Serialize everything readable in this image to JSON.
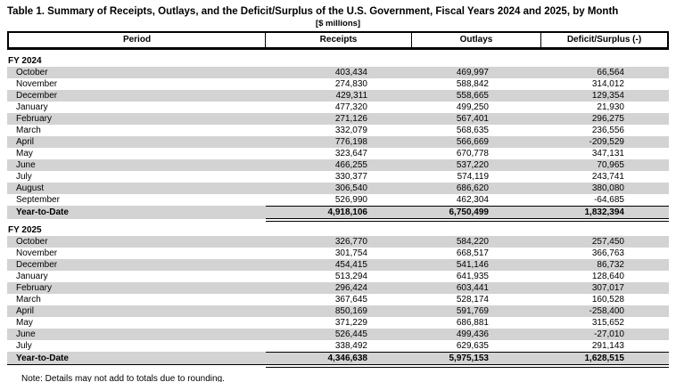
{
  "title": "Table 1. Summary of Receipts, Outlays, and the Deficit/Surplus of the U.S. Government, Fiscal Years 2024 and 2025, by Month",
  "units_caption": "[$ millions]",
  "columns": {
    "period": "Period",
    "receipts": "Receipts",
    "outlays": "Outlays",
    "deficit": "Deficit/Surplus (-)"
  },
  "colors": {
    "row_shade": "#d3d3d3",
    "border": "#000000"
  },
  "table": {
    "sections": [
      {
        "label": "FY 2024",
        "rows": [
          {
            "period": "October",
            "receipts": "403,434",
            "outlays": "469,997",
            "deficit": "66,564"
          },
          {
            "period": "November",
            "receipts": "274,830",
            "outlays": "588,842",
            "deficit": "314,012"
          },
          {
            "period": "December",
            "receipts": "429,311",
            "outlays": "558,665",
            "deficit": "129,354"
          },
          {
            "period": "January",
            "receipts": "477,320",
            "outlays": "499,250",
            "deficit": "21,930"
          },
          {
            "period": "February",
            "receipts": "271,126",
            "outlays": "567,401",
            "deficit": "296,275"
          },
          {
            "period": "March",
            "receipts": "332,079",
            "outlays": "568,635",
            "deficit": "236,556"
          },
          {
            "period": "April",
            "receipts": "776,198",
            "outlays": "566,669",
            "deficit": "-209,529"
          },
          {
            "period": "May",
            "receipts": "323,647",
            "outlays": "670,778",
            "deficit": "347,131"
          },
          {
            "period": "June",
            "receipts": "466,255",
            "outlays": "537,220",
            "deficit": "70,965"
          },
          {
            "period": "July",
            "receipts": "330,377",
            "outlays": "574,119",
            "deficit": "243,741"
          },
          {
            "period": "August",
            "receipts": "306,540",
            "outlays": "686,620",
            "deficit": "380,080"
          },
          {
            "period": "September",
            "receipts": "526,990",
            "outlays": "462,304",
            "deficit": "-64,685"
          }
        ],
        "total": {
          "period": "Year-to-Date",
          "receipts": "4,918,106",
          "outlays": "6,750,499",
          "deficit": "1,832,394"
        }
      },
      {
        "label": "FY 2025",
        "rows": [
          {
            "period": "October",
            "receipts": "326,770",
            "outlays": "584,220",
            "deficit": "257,450"
          },
          {
            "period": "November",
            "receipts": "301,754",
            "outlays": "668,517",
            "deficit": "366,763"
          },
          {
            "period": "December",
            "receipts": "454,415",
            "outlays": "541,146",
            "deficit": "86,732"
          },
          {
            "period": "January",
            "receipts": "513,294",
            "outlays": "641,935",
            "deficit": "128,640"
          },
          {
            "period": "February",
            "receipts": "296,424",
            "outlays": "603,441",
            "deficit": "307,017"
          },
          {
            "period": "March",
            "receipts": "367,645",
            "outlays": "528,174",
            "deficit": "160,528"
          },
          {
            "period": "April",
            "receipts": "850,169",
            "outlays": "591,769",
            "deficit": "-258,400"
          },
          {
            "period": "May",
            "receipts": "371,229",
            "outlays": "686,881",
            "deficit": "315,652"
          },
          {
            "period": "June",
            "receipts": "526,445",
            "outlays": "499,436",
            "deficit": "-27,010"
          },
          {
            "period": "July",
            "receipts": "338,492",
            "outlays": "629,635",
            "deficit": "291,143"
          }
        ],
        "total": {
          "period": "Year-to-Date",
          "receipts": "4,346,638",
          "outlays": "5,975,153",
          "deficit": "1,628,515"
        }
      }
    ]
  },
  "note": "Note: Details may not add to totals due to rounding."
}
